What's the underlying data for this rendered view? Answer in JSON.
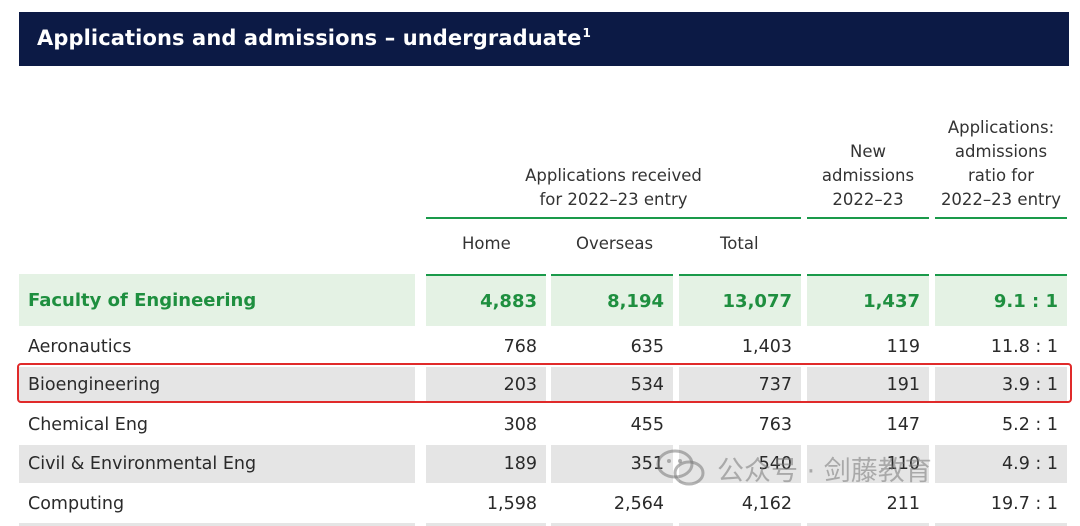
{
  "title": "Applications and admissions – undergraduate",
  "title_footnote": "1",
  "headers": {
    "applications_received_line1": "Applications received",
    "applications_received_line2": "for 2022–23 entry",
    "new_admissions_line1": "New",
    "new_admissions_line2": "admissions",
    "new_admissions_line3": "2022–23",
    "ratio_line1": "Applications:",
    "ratio_line2": "admissions",
    "ratio_line3": "ratio for",
    "ratio_line4": "2022–23 entry",
    "home": "Home",
    "overseas": "Overseas",
    "total": "Total"
  },
  "rows": [
    {
      "name": "Faculty of Engineering",
      "home": "4,883",
      "overseas": "8,194",
      "total": "13,077",
      "new_admissions": "1,437",
      "ratio": "9.1 : 1"
    },
    {
      "name": "Aeronautics",
      "home": "768",
      "overseas": "635",
      "total": "1,403",
      "new_admissions": "119",
      "ratio": "11.8 : 1"
    },
    {
      "name": "Bioengineering",
      "home": "203",
      "overseas": "534",
      "total": "737",
      "new_admissions": "191",
      "ratio": "3.9 : 1"
    },
    {
      "name": "Chemical Eng",
      "home": "308",
      "overseas": "455",
      "total": "763",
      "new_admissions": "147",
      "ratio": "5.2 : 1"
    },
    {
      "name": "Civil & Environmental Eng",
      "home": "189",
      "overseas": "351",
      "total": "540",
      "new_admissions": "110",
      "ratio": "4.9 : 1"
    },
    {
      "name": "Computing",
      "home": "1,598",
      "overseas": "2,564",
      "total": "4,162",
      "new_admissions": "211",
      "ratio": "19.7 : 1"
    }
  ],
  "watermark": {
    "text": "公众号 · 剑藤教育",
    "icon": "wechat-icon"
  },
  "colors": {
    "title_bg": "#0c1a45",
    "accent_green": "#1a9a4a",
    "highlight_red": "#e02a2a"
  }
}
